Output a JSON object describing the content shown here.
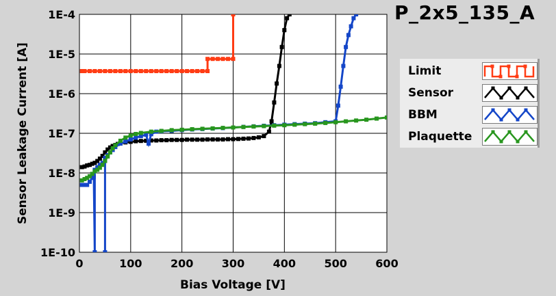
{
  "chart_data": {
    "type": "line",
    "title": "P_2x5_135_A",
    "xlabel": "Bias Voltage [V]",
    "ylabel": "Sensor Leakage Current [A]",
    "xlim": [
      0,
      600
    ],
    "ylim": [
      1e-10,
      0.0001
    ],
    "yscale": "log",
    "x_ticks": [
      0,
      100,
      200,
      300,
      400,
      500,
      600
    ],
    "y_ticks": [
      1e-10,
      1e-09,
      1e-08,
      1e-07,
      1e-06,
      1e-05,
      0.0001
    ],
    "y_tick_labels": [
      "1E-10",
      "1E-9",
      "1E-8",
      "1E-7",
      "1E-6",
      "1E-5",
      "1E-4"
    ],
    "grid": true,
    "legend_position": "right",
    "series": [
      {
        "name": "Limit",
        "color": "#ff3c14",
        "x": [
          5,
          10,
          20,
          30,
          40,
          50,
          60,
          70,
          80,
          90,
          100,
          110,
          120,
          130,
          140,
          150,
          160,
          170,
          180,
          190,
          200,
          210,
          220,
          230,
          240,
          250,
          250,
          260,
          270,
          280,
          290,
          300,
          300
        ],
        "y": [
          3.7e-06,
          3.7e-06,
          3.7e-06,
          3.7e-06,
          3.7e-06,
          3.7e-06,
          3.7e-06,
          3.7e-06,
          3.7e-06,
          3.7e-06,
          3.7e-06,
          3.7e-06,
          3.7e-06,
          3.7e-06,
          3.7e-06,
          3.7e-06,
          3.7e-06,
          3.7e-06,
          3.7e-06,
          3.7e-06,
          3.7e-06,
          3.7e-06,
          3.7e-06,
          3.7e-06,
          3.7e-06,
          3.7e-06,
          7.5e-06,
          7.5e-06,
          7.5e-06,
          7.5e-06,
          7.5e-06,
          7.5e-06,
          0.0001
        ]
      },
      {
        "name": "Sensor",
        "color": "#000000",
        "x": [
          5,
          10,
          15,
          20,
          25,
          30,
          35,
          40,
          45,
          50,
          55,
          60,
          65,
          70,
          75,
          80,
          90,
          100,
          110,
          120,
          130,
          140,
          150,
          160,
          170,
          180,
          190,
          200,
          210,
          220,
          230,
          240,
          250,
          260,
          270,
          280,
          290,
          300,
          310,
          320,
          330,
          340,
          350,
          360,
          370,
          375,
          380,
          385,
          390,
          395,
          400,
          405,
          410
        ],
        "y": [
          1.4e-08,
          1.45e-08,
          1.55e-08,
          1.6e-08,
          1.7e-08,
          1.8e-08,
          2e-08,
          2.3e-08,
          2.7e-08,
          3.3e-08,
          3.9e-08,
          4.4e-08,
          4.8e-08,
          5.1e-08,
          5.4e-08,
          5.6e-08,
          5.9e-08,
          6.1e-08,
          6.3e-08,
          6.4e-08,
          6.5e-08,
          6.6e-08,
          6.6e-08,
          6.7e-08,
          6.7e-08,
          6.8e-08,
          6.8e-08,
          6.8e-08,
          6.9e-08,
          6.9e-08,
          6.9e-08,
          6.9e-08,
          7e-08,
          7e-08,
          7e-08,
          7e-08,
          7.1e-08,
          7.1e-08,
          7.2e-08,
          7.3e-08,
          7.4e-08,
          7.6e-08,
          7.9e-08,
          8.5e-08,
          1.1e-07,
          2e-07,
          6e-07,
          1.8e-06,
          5e-06,
          1.5e-05,
          4e-05,
          8e-05,
          0.0001
        ]
      },
      {
        "name": "BBM",
        "color": "#1446c8",
        "x": [
          5,
          10,
          15,
          20,
          25,
          28,
          30,
          30,
          35,
          40,
          45,
          50,
          50,
          50,
          55,
          60,
          65,
          70,
          80,
          90,
          100,
          110,
          120,
          130,
          135,
          140,
          150,
          160,
          180,
          200,
          220,
          240,
          260,
          280,
          300,
          320,
          340,
          360,
          380,
          400,
          420,
          440,
          460,
          480,
          500,
          505,
          510,
          515,
          520,
          525,
          530,
          535,
          540
        ],
        "y": [
          5e-09,
          5e-09,
          5e-09,
          6e-09,
          7.5e-09,
          8e-09,
          1e-10,
          1.2e-08,
          1.4e-08,
          1.6e-08,
          1.8e-08,
          2e-08,
          1e-10,
          2.4e-08,
          2.8e-08,
          3.3e-08,
          3.8e-08,
          4.5e-08,
          5.5e-08,
          6.2e-08,
          7e-08,
          7.8e-08,
          8.5e-08,
          9.2e-08,
          5.5e-08,
          9.5e-08,
          1.1e-07,
          1.12e-07,
          1.15e-07,
          1.2e-07,
          1.25e-07,
          1.28e-07,
          1.32e-07,
          1.35e-07,
          1.4e-07,
          1.45e-07,
          1.5e-07,
          1.55e-07,
          1.6e-07,
          1.65e-07,
          1.7e-07,
          1.75e-07,
          1.8e-07,
          1.9e-07,
          2e-07,
          5e-07,
          1.5e-06,
          5e-06,
          1.5e-05,
          3e-05,
          5e-05,
          8e-05,
          0.0001
        ]
      },
      {
        "name": "Plaquette",
        "color": "#28961e",
        "x": [
          5,
          10,
          15,
          20,
          25,
          30,
          35,
          40,
          45,
          50,
          55,
          60,
          65,
          70,
          80,
          90,
          100,
          110,
          120,
          140,
          160,
          180,
          200,
          220,
          240,
          260,
          280,
          300,
          320,
          340,
          360,
          380,
          400,
          420,
          440,
          460,
          480,
          500,
          520,
          540,
          560,
          580,
          600
        ],
        "y": [
          6.5e-09,
          7e-09,
          7.5e-09,
          8.3e-09,
          9.5e-09,
          1.1e-08,
          1.2e-08,
          1.35e-08,
          1.6e-08,
          2e-08,
          2.6e-08,
          3.3e-08,
          4.2e-08,
          5e-08,
          6.5e-08,
          7.8e-08,
          8.8e-08,
          9.6e-08,
          1.02e-07,
          1.1e-07,
          1.15e-07,
          1.2e-07,
          1.23e-07,
          1.27e-07,
          1.3e-07,
          1.33e-07,
          1.37e-07,
          1.4e-07,
          1.44e-07,
          1.48e-07,
          1.52e-07,
          1.56e-07,
          1.6e-07,
          1.65e-07,
          1.7e-07,
          1.75e-07,
          1.82e-07,
          1.9e-07,
          2e-07,
          2.1e-07,
          2.2e-07,
          2.35e-07,
          2.5e-07
        ]
      }
    ]
  }
}
